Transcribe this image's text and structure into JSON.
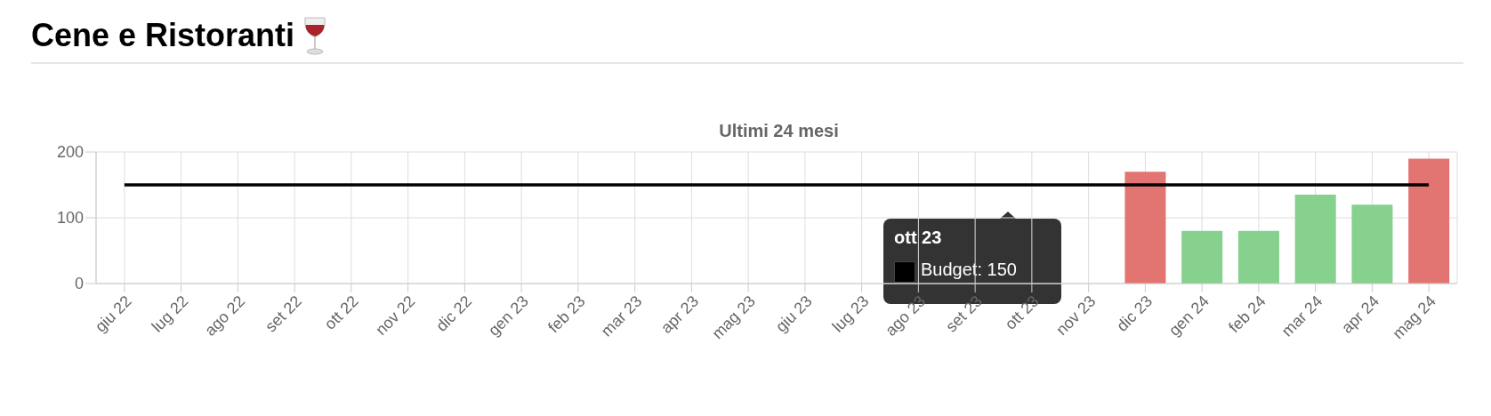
{
  "chart_data": {
    "type": "bar",
    "title": "Cene e Ristoranti",
    "subtitle": "Ultimi 24 mesi",
    "categories": [
      "giu 22",
      "lug 22",
      "ago 22",
      "set 22",
      "ott 22",
      "nov 22",
      "dic 22",
      "gen 23",
      "feb 23",
      "mar 23",
      "apr 23",
      "mag 23",
      "giu 23",
      "lug 23",
      "ago 23",
      "set 23",
      "ott 23",
      "nov 23",
      "dic 23",
      "gen 24",
      "feb 24",
      "mar 24",
      "apr 24",
      "mag 24"
    ],
    "series": [
      {
        "type": "line",
        "color": "#000000",
        "values": [
          150,
          150,
          150,
          150,
          150,
          150,
          150,
          150,
          150,
          150,
          150,
          150,
          150,
          150,
          150,
          150,
          150,
          150,
          150,
          150,
          150,
          150,
          150,
          150
        ]
      },
      {
        "colors": [
          "#e06d69",
          "#e06d69",
          "#e06d69",
          "#e06d69",
          "#e06d69",
          "#e06d69",
          "#e06d69",
          "#e06d69",
          "#e06d69",
          "#e06d69",
          "#e06d69",
          "#e06d69",
          "#e06d69",
          "#e06d69",
          "#e06d69",
          "#e06d69",
          "#e06d69",
          "#e06d69",
          "#e06d69",
          "#7ecf87",
          "#7ecf87",
          "#7ecf87",
          "#7ecf87",
          "#e06d69"
        ],
        "values": [
          null,
          null,
          null,
          null,
          null,
          null,
          null,
          null,
          null,
          null,
          null,
          null,
          null,
          null,
          null,
          null,
          null,
          null,
          170,
          80,
          80,
          135,
          120,
          190
        ]
      }
    ],
    "ylim": [
      0,
      200
    ],
    "yticks": [
      0,
      100,
      200
    ],
    "grid": true,
    "marker": "none",
    "legend": false,
    "annotations": [
      "ott 23",
      "Budget: 150"
    ]
  }
}
